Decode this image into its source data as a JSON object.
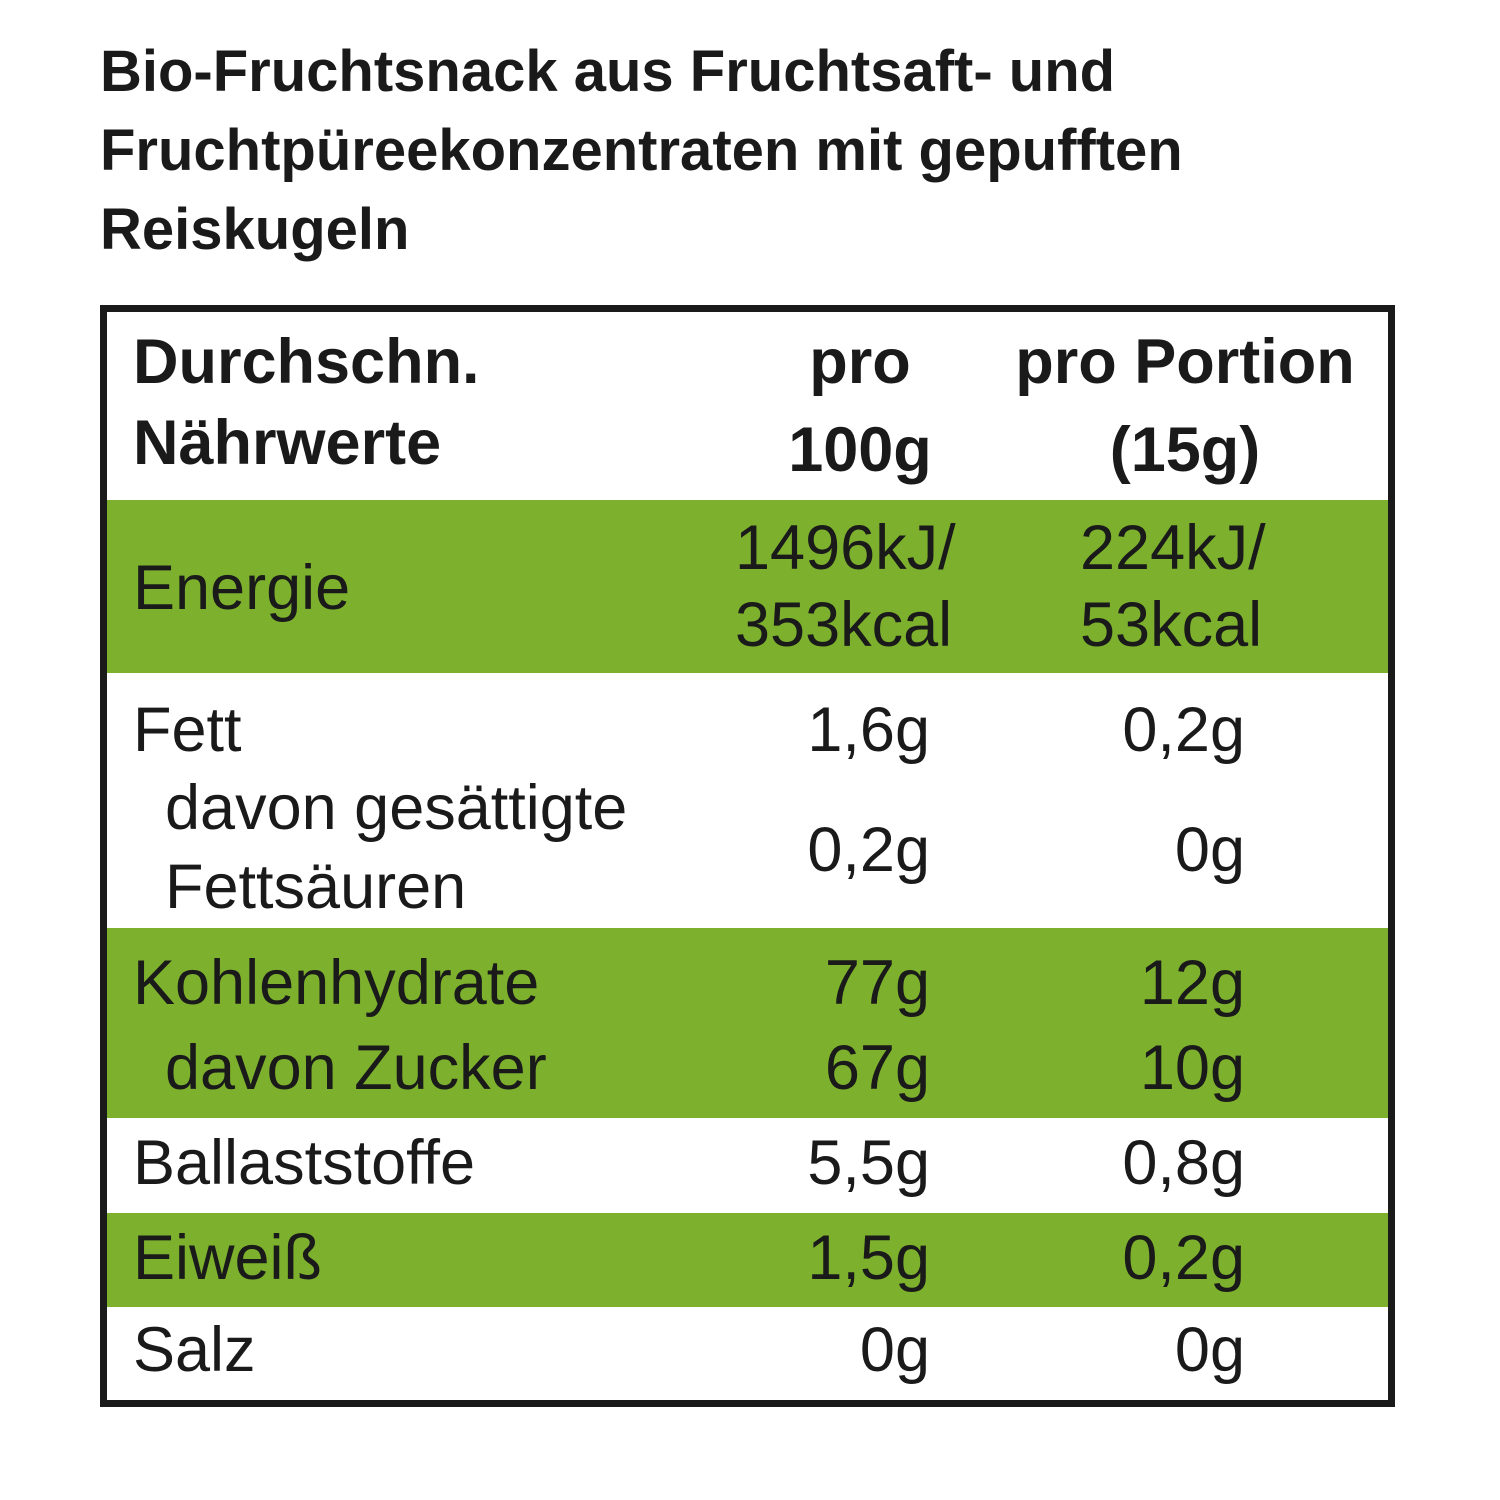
{
  "title": {
    "lines": [
      "Bio-Fruchtsnack aus Fruchtsaft- und",
      "Fruchtpüreekonzentraten mit gepufften",
      "Reiskugeln"
    ]
  },
  "table": {
    "header": {
      "label": [
        "Durchschn.",
        "Nährwerte"
      ],
      "per_100g": [
        "pro",
        "100g"
      ],
      "per_portion": [
        "pro Portion",
        "(15g)"
      ]
    },
    "rows": [
      {
        "label": [
          "Energie"
        ],
        "per_100g": [
          "1496kJ/",
          "353kcal"
        ],
        "per_portion": [
          "224kJ/",
          "53kcal"
        ]
      },
      {
        "label": [
          "Fett"
        ],
        "per_100g": [
          "1,6g"
        ],
        "per_portion": [
          "0,2g"
        ]
      },
      {
        "label": [
          "davon gesättigte",
          "Fettsäuren"
        ],
        "per_100g": [
          "0,2g"
        ],
        "per_portion": [
          "0g"
        ]
      },
      {
        "label": [
          "Kohlenhydrate"
        ],
        "per_100g": [
          "77g"
        ],
        "per_portion": [
          "12g"
        ]
      },
      {
        "label": [
          "davon Zucker"
        ],
        "per_100g": [
          "67g"
        ],
        "per_portion": [
          "10g"
        ]
      },
      {
        "label": [
          "Ballaststoffe"
        ],
        "per_100g": [
          "5,5g"
        ],
        "per_portion": [
          "0,8g"
        ]
      },
      {
        "label": [
          "Eiweiß"
        ],
        "per_100g": [
          "1,5g"
        ],
        "per_portion": [
          "0,2g"
        ]
      },
      {
        "label": [
          "Salz"
        ],
        "per_100g": [
          "0g"
        ],
        "per_portion": [
          "0g"
        ]
      }
    ]
  }
}
